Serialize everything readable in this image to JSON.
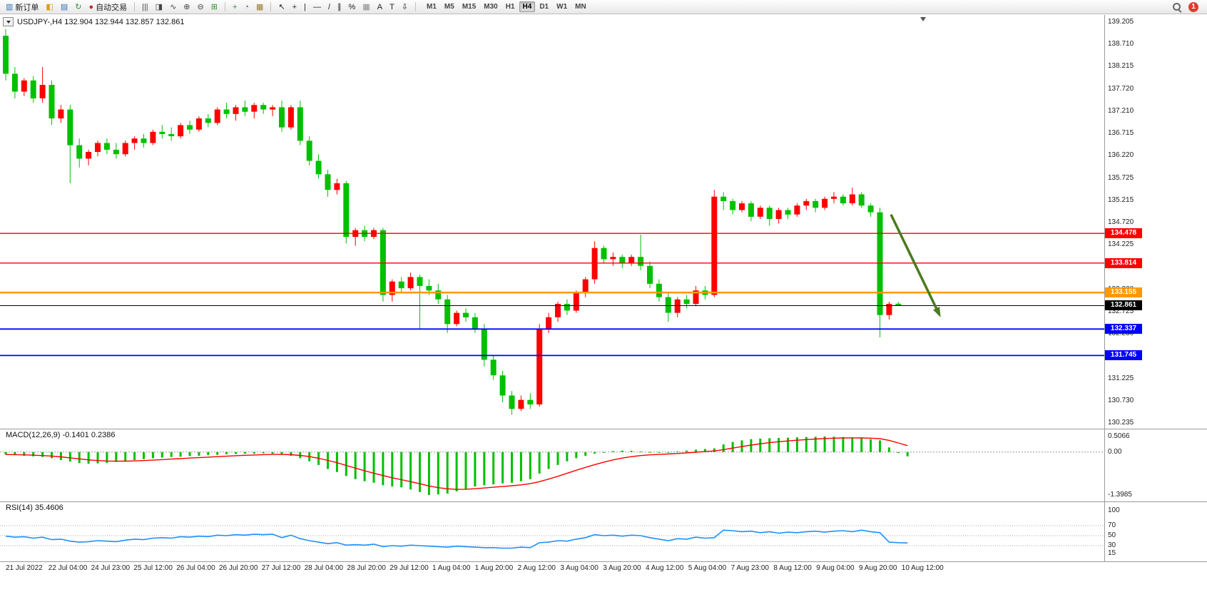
{
  "window": {
    "symbol_label": "USDJPY-,H4 132.904 132.944 132.857 132.861"
  },
  "toolbar": {
    "items": [
      {
        "name": "new-order-button",
        "icon": "new-order-icon",
        "glyph": "▥",
        "glyph_color": "#2f6fb0",
        "label": "新订单"
      },
      {
        "name": "chart-window-icon",
        "glyph": "◧",
        "glyph_color": "#d99a12"
      },
      {
        "name": "market-watch-icon",
        "glyph": "▤",
        "glyph_color": "#2f6fb0"
      },
      {
        "name": "refresh-icon",
        "glyph": "↻",
        "glyph_color": "#2f8f2f"
      },
      {
        "name": "autotrading-button",
        "icon": "autotrading-icon",
        "glyph": "●",
        "glyph_color": "#cf2b2b",
        "label": "自动交易"
      },
      {
        "sep": true
      },
      {
        "name": "bar-chart-icon",
        "glyph": "|||",
        "glyph_color": "#444444"
      },
      {
        "name": "candlestick-icon",
        "glyph": "◨",
        "glyph_color": "#444444"
      },
      {
        "name": "line-chart-icon",
        "glyph": "∿",
        "glyph_color": "#444444"
      },
      {
        "name": "zoom-in-icon",
        "glyph": "⊕",
        "glyph_color": "#444444"
      },
      {
        "name": "zoom-out-icon",
        "glyph": "⊖",
        "glyph_color": "#444444"
      },
      {
        "name": "tile-windows-icon",
        "glyph": "⊞",
        "glyph_color": "#2f8f2f"
      },
      {
        "sep": true
      },
      {
        "name": "indicators-icon",
        "glyph": "+",
        "glyph_color": "#2f8f2f"
      },
      {
        "name": "timeframes-icon",
        "glyph": "◔",
        "glyph_color": "#2f6fb0"
      },
      {
        "name": "templates-icon",
        "glyph": "▦",
        "glyph_color": "#9a7b2f"
      },
      {
        "sep": true
      },
      {
        "name": "cursor-icon",
        "glyph": "↖",
        "glyph_color": "#222222"
      },
      {
        "name": "crosshair-icon",
        "glyph": "+",
        "glyph_color": "#222222"
      },
      {
        "name": "vertical-line-icon",
        "glyph": "|",
        "glyph_color": "#222222"
      },
      {
        "name": "horizontal-line-icon",
        "glyph": "—",
        "glyph_color": "#222222"
      },
      {
        "name": "trendline-icon",
        "glyph": "/",
        "glyph_color": "#222222"
      },
      {
        "name": "channel-icon",
        "glyph": "∥",
        "glyph_color": "#222222"
      },
      {
        "name": "fibonacci-icon",
        "glyph": "%",
        "glyph_color": "#222222"
      },
      {
        "name": "grid-icon",
        "glyph": "▦",
        "glyph_color": "#888888"
      },
      {
        "name": "text-icon",
        "glyph": "A",
        "glyph_color": "#222222"
      },
      {
        "name": "text-label-icon",
        "glyph": "T",
        "glyph_color": "#222222"
      },
      {
        "name": "arrows-icon",
        "glyph": "⇩",
        "glyph_color": "#222222"
      },
      {
        "sep": true
      }
    ],
    "timeframes": [
      "M1",
      "M5",
      "M15",
      "M30",
      "H1",
      "H4",
      "D1",
      "W1",
      "MN"
    ],
    "active_timeframe": "H4",
    "notification_count": "1"
  },
  "price_axis": {
    "labels": [
      "139.205",
      "138.710",
      "138.215",
      "137.720",
      "137.210",
      "136.715",
      "136.220",
      "135.725",
      "135.215",
      "134.720",
      "134.225",
      "133.715",
      "133.220",
      "132.725",
      "132.230",
      "131.735",
      "131.225",
      "130.730",
      "130.235"
    ]
  },
  "levels": [
    {
      "price": 134.478,
      "label": "134.478",
      "color": "#ff0000",
      "width": 1.4
    },
    {
      "price": 133.814,
      "label": "133.814",
      "color": "#ff0000",
      "width": 1.4
    },
    {
      "price": 133.155,
      "label": "133.155",
      "color": "#ff9800",
      "width": 2.5
    },
    {
      "price": 132.861,
      "label": "132.861",
      "color": "#000000",
      "width": 1
    },
    {
      "price": 132.337,
      "label": "132.337",
      "color": "#0000ff",
      "width": 1.8
    },
    {
      "price": 131.745,
      "label": "131.745",
      "color": "#0000ff",
      "width": 1.8
    }
  ],
  "annotation_arrow": {
    "color": "#4c7a1e",
    "from": {
      "index": 96.2,
      "price": 134.9
    },
    "to": {
      "index": 101.6,
      "price": 132.6
    }
  },
  "chart_data": [
    {
      "type": "candlestick",
      "symbol": "USDJPY-",
      "period": "H4",
      "current": {
        "open": 132.904,
        "high": 132.944,
        "low": 132.857,
        "close": 132.861
      },
      "ylim": [
        130.235,
        139.205
      ],
      "up_color": "#ff0000",
      "down_color": "#00c000",
      "x_labels": [
        "21 Jul 2022",
        "22 Jul 04:00",
        "24 Jul 23:00",
        "25 Jul 12:00",
        "26 Jul 04:00",
        "26 Jul 20:00",
        "27 Jul 12:00",
        "28 Jul 04:00",
        "28 Jul 20:00",
        "29 Jul 12:00",
        "1 Aug 04:00",
        "1 Aug 20:00",
        "2 Aug 12:00",
        "3 Aug 04:00",
        "3 Aug 20:00",
        "4 Aug 12:00",
        "5 Aug 04:00",
        "7 Aug 23:00",
        "8 Aug 12:00",
        "9 Aug 04:00",
        "9 Aug 20:00",
        "10 Aug 12:00"
      ],
      "ohlc": [
        [
          138.9,
          139.05,
          137.9,
          138.05
        ],
        [
          138.05,
          138.2,
          137.5,
          137.65
        ],
        [
          137.65,
          137.95,
          137.55,
          137.9
        ],
        [
          137.9,
          138.0,
          137.4,
          137.5
        ],
        [
          137.5,
          138.2,
          137.4,
          137.8
        ],
        [
          137.8,
          137.9,
          136.9,
          137.05
        ],
        [
          137.05,
          137.35,
          136.95,
          137.25
        ],
        [
          137.25,
          137.35,
          135.6,
          136.45
        ],
        [
          136.45,
          136.6,
          135.95,
          136.15
        ],
        [
          136.15,
          136.35,
          136.0,
          136.3
        ],
        [
          136.3,
          136.55,
          136.2,
          136.5
        ],
        [
          136.5,
          136.6,
          136.25,
          136.35
        ],
        [
          136.35,
          136.5,
          136.15,
          136.25
        ],
        [
          136.25,
          136.55,
          136.2,
          136.5
        ],
        [
          136.5,
          136.65,
          136.35,
          136.6
        ],
        [
          136.6,
          136.7,
          136.4,
          136.5
        ],
        [
          136.5,
          136.8,
          136.45,
          136.75
        ],
        [
          136.75,
          136.9,
          136.6,
          136.7
        ],
        [
          136.7,
          136.85,
          136.55,
          136.65
        ],
        [
          136.65,
          136.95,
          136.6,
          136.9
        ],
        [
          136.9,
          137.0,
          136.7,
          136.8
        ],
        [
          136.8,
          137.1,
          136.75,
          137.05
        ],
        [
          137.05,
          137.15,
          136.85,
          136.95
        ],
        [
          136.95,
          137.3,
          136.9,
          137.25
        ],
        [
          137.25,
          137.4,
          137.05,
          137.15
        ],
        [
          137.15,
          137.35,
          137.0,
          137.3
        ],
        [
          137.3,
          137.45,
          137.1,
          137.2
        ],
        [
          137.2,
          137.4,
          137.05,
          137.35
        ],
        [
          137.35,
          137.4,
          137.15,
          137.25
        ],
        [
          137.25,
          137.35,
          137.1,
          137.3
        ],
        [
          137.3,
          137.45,
          136.75,
          136.85
        ],
        [
          136.85,
          137.35,
          136.8,
          137.3
        ],
        [
          137.3,
          137.45,
          136.45,
          136.55
        ],
        [
          136.55,
          136.65,
          136.0,
          136.1
        ],
        [
          136.1,
          136.25,
          135.7,
          135.8
        ],
        [
          135.8,
          135.9,
          135.3,
          135.45
        ],
        [
          135.45,
          135.7,
          135.35,
          135.6
        ],
        [
          135.6,
          135.65,
          134.25,
          134.4
        ],
        [
          134.4,
          134.6,
          134.2,
          134.55
        ],
        [
          134.55,
          134.65,
          134.3,
          134.4
        ],
        [
          134.4,
          134.6,
          134.35,
          134.55
        ],
        [
          134.55,
          134.6,
          132.95,
          133.1
        ],
        [
          133.1,
          133.45,
          132.95,
          133.4
        ],
        [
          133.4,
          133.5,
          133.15,
          133.25
        ],
        [
          133.25,
          133.6,
          133.2,
          133.5
        ],
        [
          133.5,
          133.55,
          132.35,
          133.3
        ],
        [
          133.3,
          133.45,
          133.1,
          133.2
        ],
        [
          133.2,
          133.35,
          132.9,
          133.0
        ],
        [
          133.0,
          133.1,
          132.25,
          132.45
        ],
        [
          132.45,
          132.75,
          132.4,
          132.7
        ],
        [
          132.7,
          132.8,
          132.5,
          132.6
        ],
        [
          132.6,
          132.7,
          132.25,
          132.35
        ],
        [
          132.35,
          132.45,
          131.5,
          131.65
        ],
        [
          131.65,
          131.75,
          131.2,
          131.3
        ],
        [
          131.3,
          131.4,
          130.7,
          130.85
        ],
        [
          130.85,
          130.95,
          130.42,
          130.55
        ],
        [
          130.55,
          130.85,
          130.5,
          130.75
        ],
        [
          130.75,
          130.9,
          130.55,
          130.65
        ],
        [
          130.65,
          132.45,
          130.6,
          132.35
        ],
        [
          132.35,
          132.7,
          132.25,
          132.6
        ],
        [
          132.6,
          132.95,
          132.5,
          132.9
        ],
        [
          132.9,
          133.0,
          132.65,
          132.75
        ],
        [
          132.75,
          133.2,
          132.7,
          133.15
        ],
        [
          133.15,
          133.5,
          133.05,
          133.45
        ],
        [
          133.45,
          134.3,
          133.35,
          134.15
        ],
        [
          134.15,
          134.2,
          133.8,
          133.9
        ],
        [
          133.9,
          134.05,
          133.75,
          133.95
        ],
        [
          133.95,
          134.0,
          133.7,
          133.8
        ],
        [
          133.8,
          134.0,
          133.75,
          133.95
        ],
        [
          133.95,
          134.45,
          133.65,
          133.75
        ],
        [
          133.75,
          133.85,
          133.25,
          133.35
        ],
        [
          133.35,
          133.45,
          132.95,
          133.05
        ],
        [
          133.05,
          133.15,
          132.5,
          132.7
        ],
        [
          132.7,
          133.05,
          132.6,
          133.0
        ],
        [
          133.0,
          133.1,
          132.8,
          132.9
        ],
        [
          132.9,
          133.3,
          132.85,
          133.2
        ],
        [
          133.2,
          133.3,
          133.0,
          133.1
        ],
        [
          133.1,
          135.45,
          133.05,
          135.3
        ],
        [
          135.3,
          135.4,
          135.0,
          135.2
        ],
        [
          135.2,
          135.25,
          134.9,
          135.0
        ],
        [
          135.0,
          135.2,
          134.95,
          135.15
        ],
        [
          135.15,
          135.2,
          134.75,
          134.85
        ],
        [
          134.85,
          135.1,
          134.8,
          135.05
        ],
        [
          135.05,
          135.1,
          134.65,
          134.8
        ],
        [
          134.8,
          135.05,
          134.7,
          135.0
        ],
        [
          135.0,
          135.05,
          134.8,
          134.9
        ],
        [
          134.9,
          135.15,
          134.85,
          135.1
        ],
        [
          135.1,
          135.25,
          135.0,
          135.2
        ],
        [
          135.2,
          135.25,
          134.95,
          135.05
        ],
        [
          135.05,
          135.3,
          135.0,
          135.25
        ],
        [
          135.25,
          135.4,
          135.15,
          135.3
        ],
        [
          135.3,
          135.35,
          135.1,
          135.15
        ],
        [
          135.15,
          135.5,
          135.1,
          135.35
        ],
        [
          135.35,
          135.4,
          135.05,
          135.1
        ],
        [
          135.1,
          135.15,
          134.85,
          134.95
        ],
        [
          134.95,
          135.05,
          132.15,
          132.65
        ],
        [
          132.65,
          132.95,
          132.55,
          132.9
        ],
        [
          132.904,
          132.944,
          132.857,
          132.861
        ]
      ]
    },
    {
      "type": "bar",
      "label": "MACD(12,26,9) -0.1401 0.2386",
      "name": "MACD(12,26,9)",
      "macd_value": -0.1401,
      "signal_value": 0.2386,
      "ylim": [
        -1.3985,
        0.5066
      ],
      "axis_labels": [
        "0.5066",
        "0.00",
        "-1.3985"
      ],
      "histogram_color": "#00c000",
      "signal_color": "#ff0000",
      "values": [
        -0.08,
        -0.1,
        -0.12,
        -0.14,
        -0.16,
        -0.2,
        -0.26,
        -0.31,
        -0.36,
        -0.38,
        -0.37,
        -0.35,
        -0.32,
        -0.29,
        -0.26,
        -0.23,
        -0.2,
        -0.18,
        -0.16,
        -0.15,
        -0.13,
        -0.12,
        -0.1,
        -0.09,
        -0.07,
        -0.06,
        -0.05,
        -0.05,
        -0.04,
        -0.05,
        -0.08,
        -0.12,
        -0.2,
        -0.3,
        -0.42,
        -0.55,
        -0.65,
        -0.78,
        -0.88,
        -0.95,
        -1.0,
        -1.08,
        -1.12,
        -1.15,
        -1.22,
        -1.3,
        -1.3985,
        -1.38,
        -1.35,
        -1.28,
        -1.2,
        -1.12,
        -1.08,
        -1.05,
        -1.02,
        -1.0,
        -0.95,
        -0.88,
        -0.7,
        -0.55,
        -0.42,
        -0.3,
        -0.2,
        -0.12,
        -0.05,
        0.0,
        0.03,
        0.05,
        0.04,
        0.02,
        0.0,
        -0.02,
        0.0,
        0.02,
        0.05,
        0.08,
        0.1,
        0.12,
        0.25,
        0.33,
        0.38,
        0.42,
        0.44,
        0.45,
        0.46,
        0.47,
        0.48,
        0.49,
        0.5,
        0.5066,
        0.5,
        0.49,
        0.47,
        0.45,
        0.42,
        0.38,
        0.15,
        -0.03,
        -0.1401
      ]
    },
    {
      "type": "line",
      "label": "RSI(14) 35.4606",
      "name": "RSI(14)",
      "value": 35.4606,
      "ylim": [
        0,
        100
      ],
      "levels": [
        70,
        50,
        30
      ],
      "axis_labels": [
        "100",
        "70",
        "50",
        "30",
        "15"
      ],
      "line_color": "#1e90ff",
      "values": [
        49,
        47,
        48,
        45,
        47,
        42,
        43,
        39,
        37,
        38,
        40,
        39,
        38,
        41,
        43,
        42,
        45,
        46,
        45,
        48,
        47,
        49,
        48,
        51,
        50,
        52,
        51,
        53,
        52,
        53,
        46,
        51,
        44,
        40,
        37,
        34,
        36,
        31,
        32,
        31,
        33,
        28,
        30,
        29,
        31,
        30,
        29,
        28,
        27,
        29,
        28,
        27,
        26,
        26,
        25,
        25,
        27,
        26,
        36,
        37,
        40,
        39,
        43,
        46,
        52,
        50,
        51,
        49,
        51,
        50,
        46,
        43,
        40,
        44,
        43,
        47,
        45,
        46,
        61,
        60,
        58,
        59,
        56,
        58,
        55,
        57,
        56,
        58,
        59,
        57,
        59,
        60,
        58,
        61,
        58,
        56,
        37,
        36,
        35.46
      ]
    }
  ]
}
